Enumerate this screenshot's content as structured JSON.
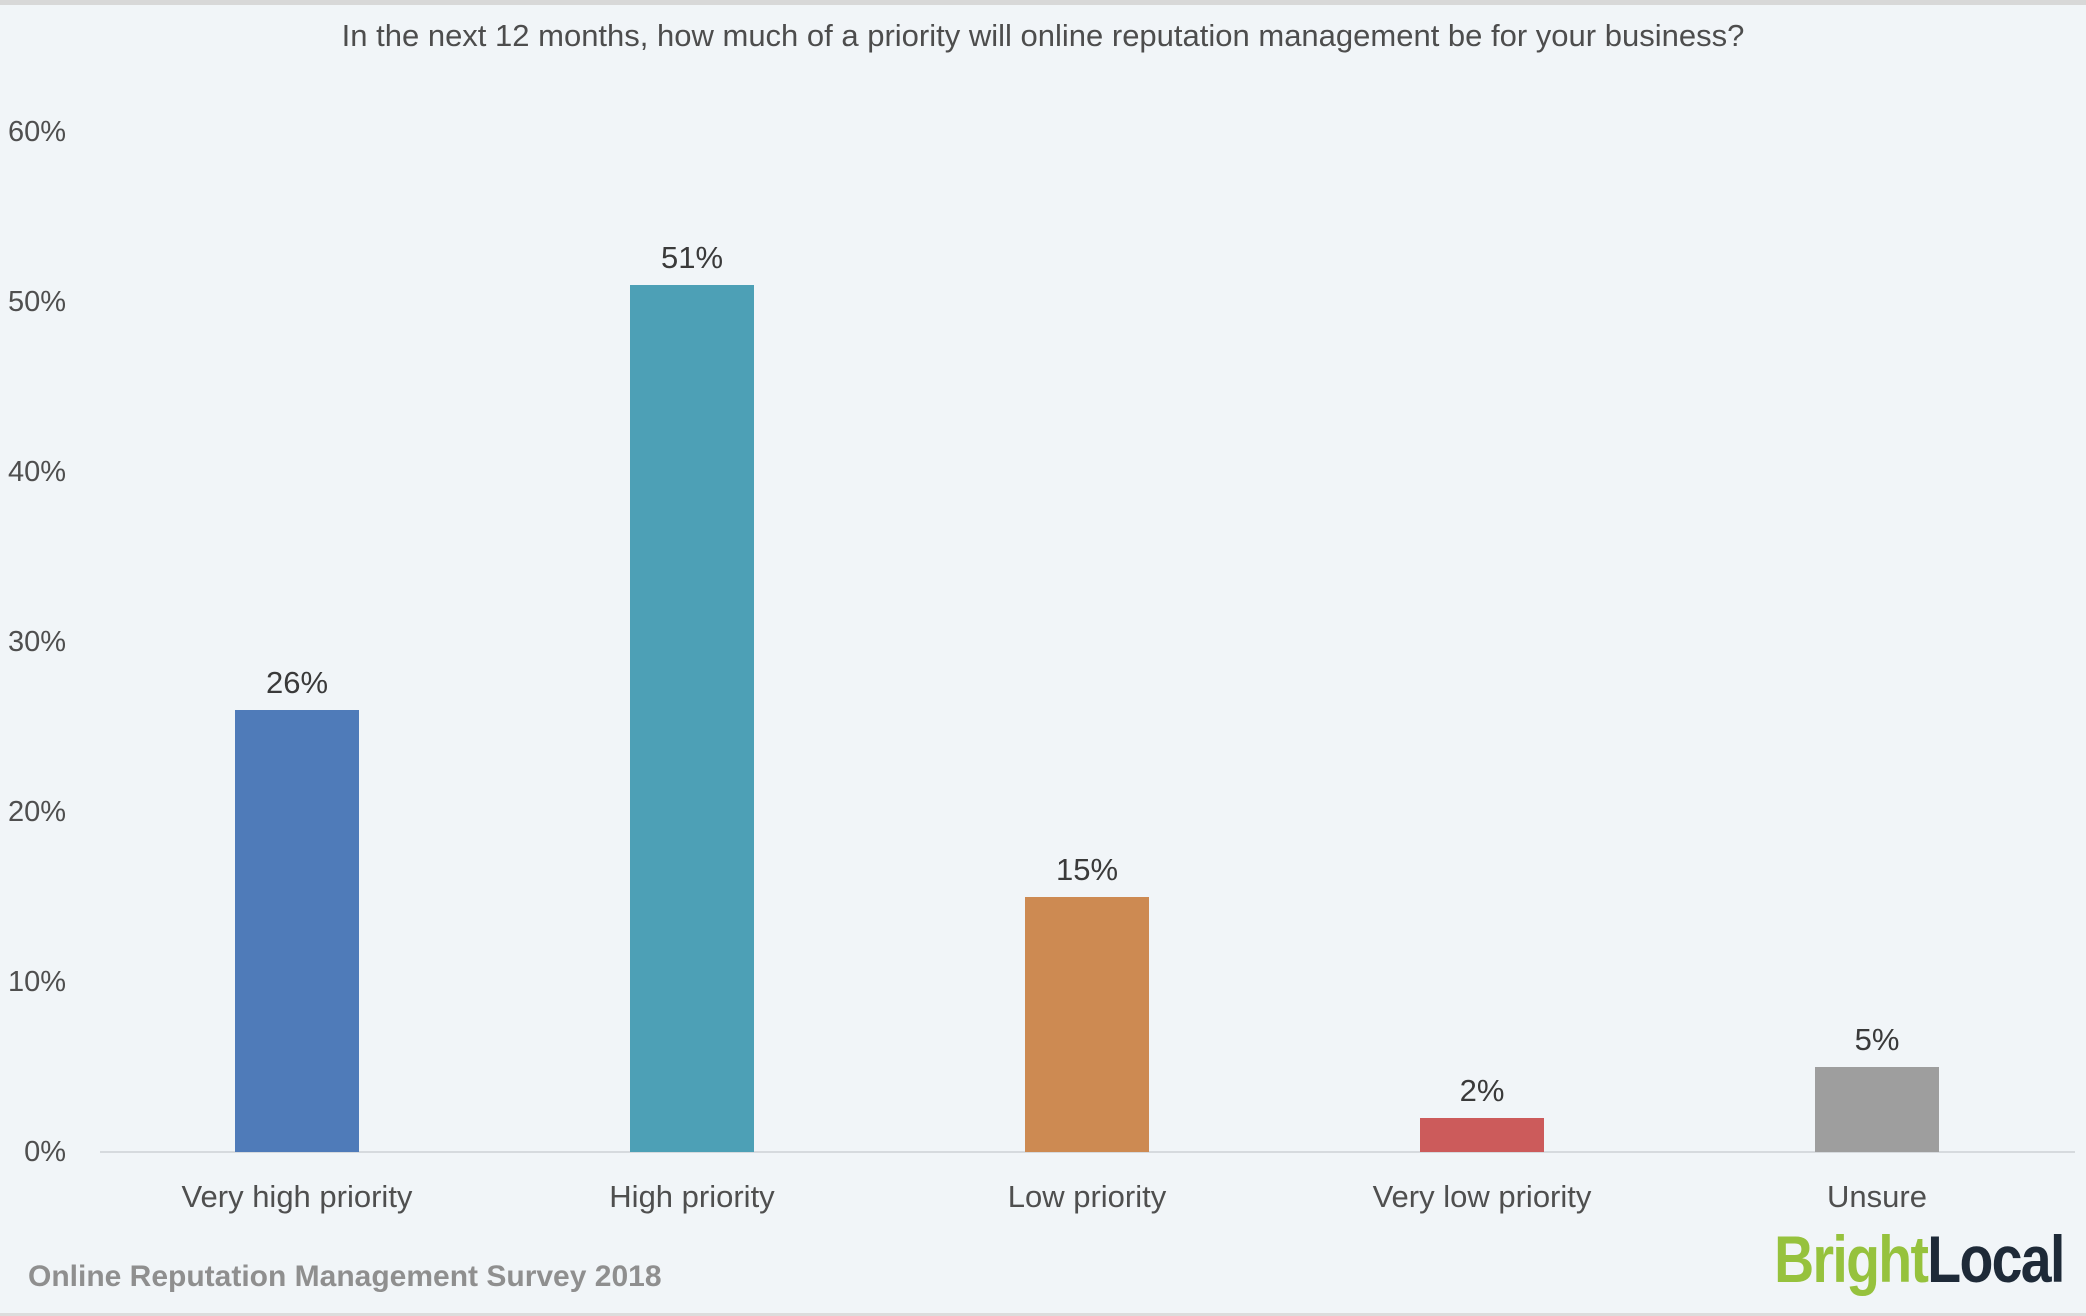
{
  "page": {
    "background_color": "#f1f5f8",
    "top_strip_color": "#d8d8d8",
    "bottom_strip_color": "#dcdcdc"
  },
  "chart_data": {
    "type": "bar",
    "title": "In the next 12 months, how much of a priority will online reputation management be for your business?",
    "categories": [
      "Very high priority",
      "High priority",
      "Low priority",
      "Very low priority",
      "Unsure"
    ],
    "values": [
      26,
      51,
      15,
      2,
      5
    ],
    "value_labels": [
      "26%",
      "51%",
      "15%",
      "2%",
      "5%"
    ],
    "bar_colors": [
      "#4f7bb9",
      "#4da0b6",
      "#cd8a52",
      "#cc5b5b",
      "#9e9e9e"
    ],
    "xlabel": "",
    "ylabel": "",
    "ylim": [
      0,
      60
    ],
    "y_ticks": [
      0,
      10,
      20,
      30,
      40,
      50,
      60
    ],
    "y_tick_labels": [
      "0%",
      "10%",
      "20%",
      "30%",
      "40%",
      "50%",
      "60%"
    ],
    "grid": false,
    "legend": false,
    "axis_line_color": "#d6dade",
    "text_color": "#4d4d4d"
  },
  "footer": {
    "source_label": "Online Reputation Management Survey 2018",
    "logo": {
      "part1": "Bright",
      "part2": "Local",
      "part1_color": "#96c23d",
      "part2_color": "#1e2a38"
    }
  }
}
